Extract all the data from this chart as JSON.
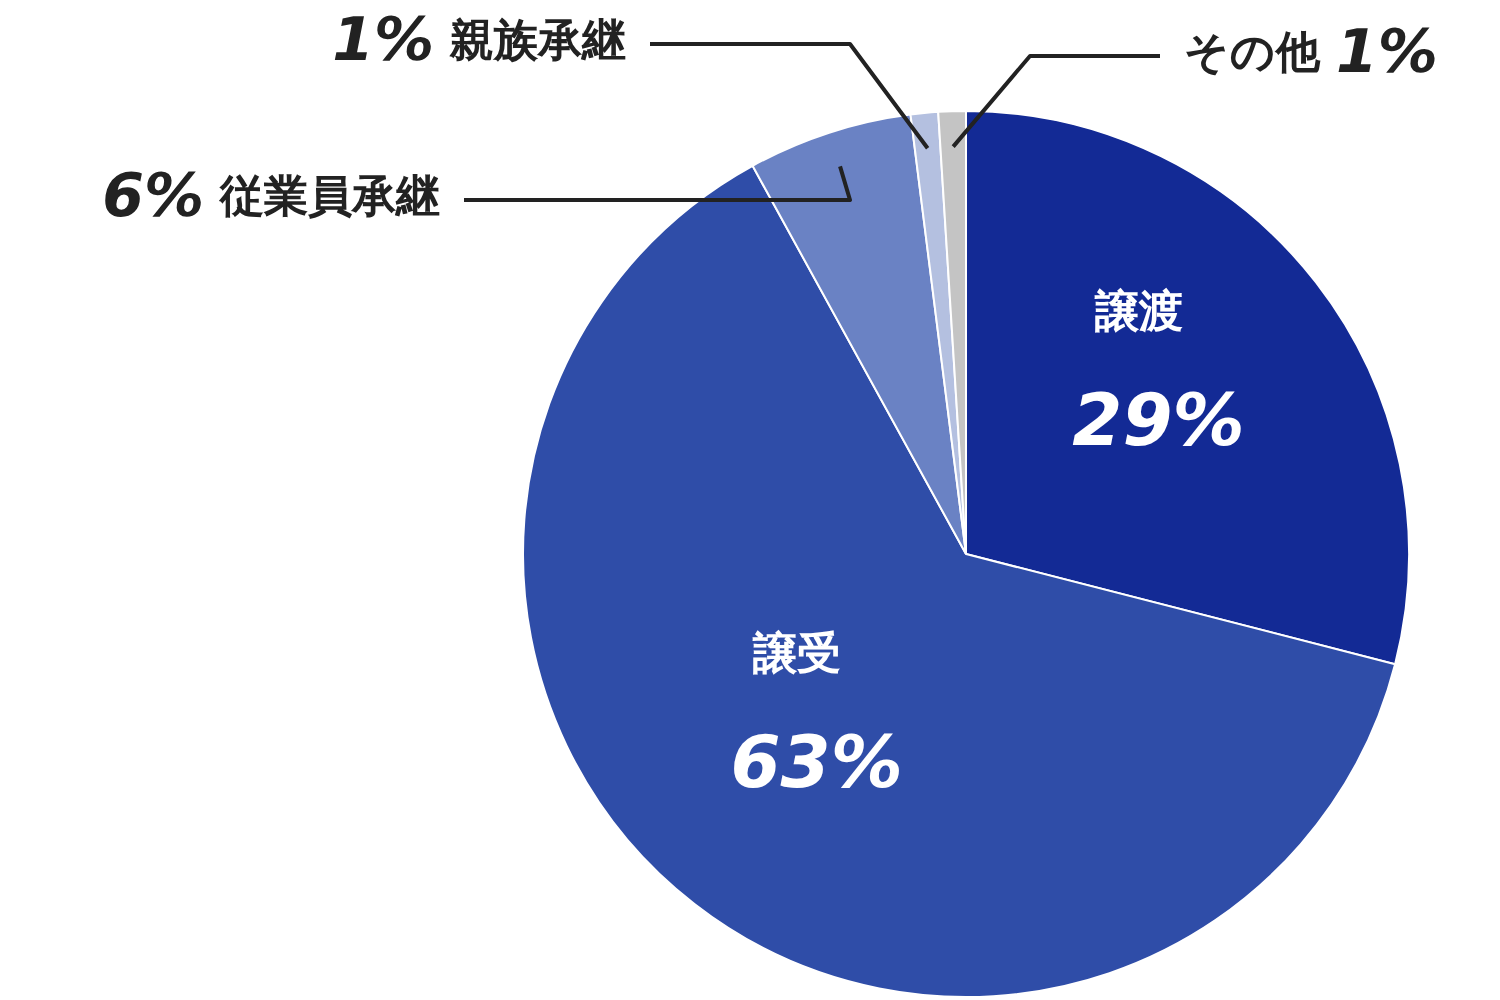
{
  "chart_data": {
    "type": "pie",
    "categories": [
      "譲渡",
      "譲受",
      "従業員承継",
      "親族承継",
      "その他"
    ],
    "values": [
      29,
      63,
      6,
      1,
      1
    ],
    "colors": [
      "#132a95",
      "#2f4da8",
      "#6a82c4",
      "#b4c0e0",
      "#c4c4c4"
    ],
    "value_labels": [
      "29%",
      "63%",
      "6%",
      "1%",
      "1%"
    ],
    "legend": false
  }
}
